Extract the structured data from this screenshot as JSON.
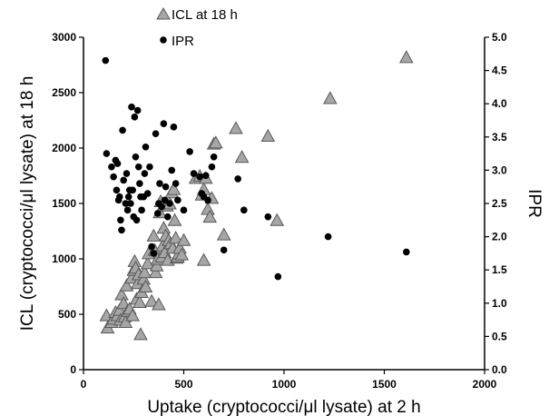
{
  "chart_data": {
    "type": "scatter",
    "xlabel": "Uptake (cryptococci/μl lysate) at 2 h",
    "ylabel": "ICL (cryptococci/μl lysate) at 18 h",
    "y2label": "IPR",
    "xlim": [
      0,
      2000
    ],
    "ylim": [
      0,
      3000
    ],
    "y2lim": [
      0,
      5.0
    ],
    "xticks": [
      "0",
      "500",
      "1000",
      "1500",
      "2000"
    ],
    "yticks": [
      "0",
      "500",
      "1000",
      "1500",
      "2000",
      "2500",
      "3000"
    ],
    "y2ticks": [
      "0.0",
      "0.5",
      "1.0",
      "1.5",
      "2.0",
      "2.5",
      "3.0",
      "3.5",
      "4.0",
      "4.5",
      "5.0"
    ],
    "legend": {
      "position": "top-left"
    },
    "series": [
      {
        "name": "ICL at 18 h",
        "axis": "left",
        "marker": "triangle",
        "color": "#a6a6a6",
        "points": [
          [
            115,
            490
          ],
          [
            120,
            380
          ],
          [
            140,
            430
          ],
          [
            150,
            460
          ],
          [
            160,
            520
          ],
          [
            170,
            490
          ],
          [
            180,
            540
          ],
          [
            185,
            450
          ],
          [
            190,
            680
          ],
          [
            200,
            600
          ],
          [
            205,
            480
          ],
          [
            210,
            430
          ],
          [
            215,
            760
          ],
          [
            220,
            530
          ],
          [
            230,
            550
          ],
          [
            240,
            830
          ],
          [
            245,
            490
          ],
          [
            250,
            900
          ],
          [
            255,
            980
          ],
          [
            260,
            920
          ],
          [
            265,
            640
          ],
          [
            270,
            780
          ],
          [
            275,
            860
          ],
          [
            280,
            610
          ],
          [
            285,
            320
          ],
          [
            290,
            700
          ],
          [
            300,
            820
          ],
          [
            305,
            880
          ],
          [
            310,
            750
          ],
          [
            320,
            960
          ],
          [
            325,
            1050
          ],
          [
            340,
            620
          ],
          [
            350,
            1210
          ],
          [
            355,
            1080
          ],
          [
            360,
            880
          ],
          [
            365,
            940
          ],
          [
            370,
            1000
          ],
          [
            375,
            590
          ],
          [
            380,
            1420
          ],
          [
            385,
            1520
          ],
          [
            390,
            1020
          ],
          [
            395,
            1120
          ],
          [
            400,
            1280
          ],
          [
            405,
            1060
          ],
          [
            410,
            1210
          ],
          [
            415,
            1480
          ],
          [
            420,
            990
          ],
          [
            425,
            1170
          ],
          [
            430,
            1500
          ],
          [
            435,
            1140
          ],
          [
            440,
            1600
          ],
          [
            445,
            1100
          ],
          [
            450,
            1630
          ],
          [
            455,
            1350
          ],
          [
            460,
            1190
          ],
          [
            465,
            1010
          ],
          [
            470,
            1020
          ],
          [
            475,
            1050
          ],
          [
            480,
            1100
          ],
          [
            490,
            1040
          ],
          [
            500,
            1170
          ],
          [
            560,
            1730
          ],
          [
            580,
            1750
          ],
          [
            590,
            1580
          ],
          [
            600,
            1630
          ],
          [
            610,
            1730
          ],
          [
            620,
            1450
          ],
          [
            630,
            1380
          ],
          [
            640,
            1550
          ],
          [
            650,
            2040
          ],
          [
            660,
            2050
          ],
          [
            600,
            990
          ],
          [
            700,
            1220
          ],
          [
            760,
            2180
          ],
          [
            790,
            1920
          ],
          [
            920,
            2110
          ],
          [
            965,
            1350
          ],
          [
            1230,
            2450
          ],
          [
            1610,
            2820
          ]
        ]
      },
      {
        "name": "IPR",
        "axis": "right",
        "marker": "circle",
        "color": "#000000",
        "points": [
          [
            110,
            4.65
          ],
          [
            115,
            3.25
          ],
          [
            140,
            3.05
          ],
          [
            150,
            2.9
          ],
          [
            160,
            3.15
          ],
          [
            165,
            2.7
          ],
          [
            170,
            3.1
          ],
          [
            175,
            2.55
          ],
          [
            180,
            2.6
          ],
          [
            185,
            2.25
          ],
          [
            190,
            2.1
          ],
          [
            195,
            3.6
          ],
          [
            200,
            2.85
          ],
          [
            210,
            2.5
          ],
          [
            215,
            2.95
          ],
          [
            220,
            2.4
          ],
          [
            225,
            2.6
          ],
          [
            230,
            2.7
          ],
          [
            235,
            2.5
          ],
          [
            240,
            3.95
          ],
          [
            245,
            2.7
          ],
          [
            250,
            2.3
          ],
          [
            255,
            3.8
          ],
          [
            260,
            3.2
          ],
          [
            265,
            2.25
          ],
          [
            270,
            3.9
          ],
          [
            275,
            3.05
          ],
          [
            280,
            2.8
          ],
          [
            285,
            2.6
          ],
          [
            290,
            2.4
          ],
          [
            300,
            2.6
          ],
          [
            305,
            2.95
          ],
          [
            310,
            3.35
          ],
          [
            320,
            2.65
          ],
          [
            330,
            3.05
          ],
          [
            340,
            1.85
          ],
          [
            350,
            1.75
          ],
          [
            360,
            3.55
          ],
          [
            370,
            2.35
          ],
          [
            375,
            2.5
          ],
          [
            380,
            2.8
          ],
          [
            390,
            2.45
          ],
          [
            400,
            3.7
          ],
          [
            405,
            2.55
          ],
          [
            410,
            2.75
          ],
          [
            420,
            2.3
          ],
          [
            430,
            2.5
          ],
          [
            440,
            3.0
          ],
          [
            450,
            3.65
          ],
          [
            460,
            2.8
          ],
          [
            470,
            2.55
          ],
          [
            500,
            2.4
          ],
          [
            530,
            3.28
          ],
          [
            550,
            2.95
          ],
          [
            580,
            2.9
          ],
          [
            590,
            2.65
          ],
          [
            600,
            2.6
          ],
          [
            610,
            2.92
          ],
          [
            620,
            2.55
          ],
          [
            640,
            3.05
          ],
          [
            650,
            3.2
          ],
          [
            700,
            1.8
          ],
          [
            770,
            2.87
          ],
          [
            800,
            2.4
          ],
          [
            920,
            2.3
          ],
          [
            970,
            1.4
          ],
          [
            1220,
            2.0
          ],
          [
            1610,
            1.77
          ]
        ]
      }
    ]
  }
}
